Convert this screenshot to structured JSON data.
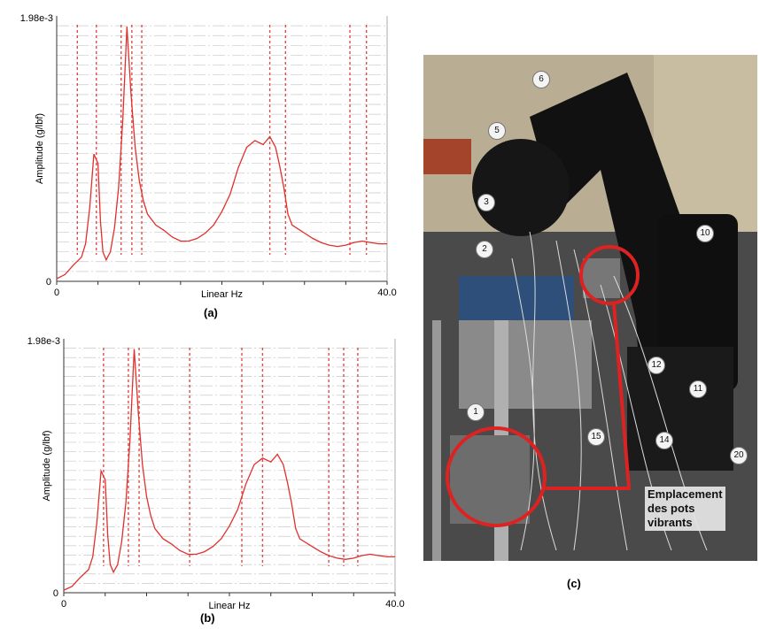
{
  "chart_data": [
    {
      "id": "a",
      "type": "line",
      "caption": "(a)",
      "ylabel": "Amplitude (g/lbf)",
      "xlabel": "Linear Hz",
      "y_max_label": "1.98e-3",
      "y_min_label": "0",
      "x_min_label": "0",
      "x_max_label": "40.0",
      "xlim": [
        0,
        40
      ],
      "ylim": [
        0,
        0.00198
      ],
      "grid": true,
      "series": [
        {
          "color": "#e0302c",
          "x": [
            0,
            1,
            2,
            3,
            3.5,
            4,
            4.5,
            5,
            5.3,
            5.6,
            6,
            6.5,
            7,
            7.5,
            8,
            8.5,
            9,
            9.5,
            10,
            10.5,
            11,
            12,
            13,
            14,
            15,
            16,
            17,
            18,
            19,
            20,
            21,
            22,
            23,
            24,
            25,
            25.8,
            26.5,
            27,
            27.5,
            28,
            28.5,
            29,
            29.5,
            30,
            31,
            32,
            33,
            34,
            35,
            36,
            37,
            38,
            39,
            40
          ],
          "y": [
            2e-05,
            5e-05,
            0.00012,
            0.00018,
            0.00028,
            0.00055,
            0.00095,
            0.00088,
            0.00045,
            0.00022,
            0.00016,
            0.00022,
            0.0004,
            0.0007,
            0.0012,
            0.0019,
            0.0014,
            0.001,
            0.00075,
            0.0006,
            0.0005,
            0.00042,
            0.00038,
            0.00033,
            0.0003,
            0.0003,
            0.00032,
            0.00036,
            0.00042,
            0.00052,
            0.00065,
            0.00085,
            0.001,
            0.00105,
            0.00102,
            0.00108,
            0.001,
            0.00086,
            0.0007,
            0.0005,
            0.00042,
            0.0004,
            0.00038,
            0.00036,
            0.00032,
            0.00029,
            0.00027,
            0.00026,
            0.00027,
            0.00029,
            0.0003,
            0.00029,
            0.00028,
            0.00028
          ]
        }
      ],
      "mode_lines_x": [
        2.5,
        4.8,
        7.8,
        9.1,
        10.3,
        25.8,
        27.7,
        35.5,
        37.5
      ]
    },
    {
      "id": "b",
      "type": "line",
      "caption": "(b)",
      "ylabel": "Amplitude (g/lbf)",
      "xlabel": "Linear Hz",
      "y_max_label": "1.98e-3",
      "y_min_label": "0",
      "x_min_label": "0",
      "x_max_label": "40.0",
      "xlim": [
        0,
        40
      ],
      "ylim": [
        0,
        0.00198
      ],
      "grid": true,
      "series": [
        {
          "color": "#e0302c",
          "x": [
            0,
            1,
            2,
            3,
            3.5,
            4,
            4.5,
            5,
            5.3,
            5.6,
            6,
            6.5,
            7,
            7.5,
            8,
            8.5,
            9,
            9.5,
            10,
            10.5,
            11,
            12,
            13,
            14,
            15,
            16,
            17,
            18,
            19,
            20,
            21,
            22,
            23,
            24,
            25,
            25.8,
            26.5,
            27,
            27.5,
            28,
            28.5,
            29,
            29.5,
            30,
            31,
            32,
            33,
            34,
            35,
            36,
            37,
            38,
            39,
            40
          ],
          "y": [
            2e-05,
            5e-05,
            0.00012,
            0.00018,
            0.00028,
            0.00055,
            0.00095,
            0.00088,
            0.00045,
            0.00022,
            0.00016,
            0.00022,
            0.0004,
            0.0007,
            0.0012,
            0.0019,
            0.0014,
            0.001,
            0.00075,
            0.0006,
            0.0005,
            0.00042,
            0.00038,
            0.00033,
            0.0003,
            0.0003,
            0.00032,
            0.00036,
            0.00042,
            0.00052,
            0.00065,
            0.00085,
            0.001,
            0.00105,
            0.00102,
            0.00108,
            0.001,
            0.00086,
            0.0007,
            0.0005,
            0.00042,
            0.0004,
            0.00038,
            0.00036,
            0.00032,
            0.00029,
            0.00027,
            0.00026,
            0.00027,
            0.00029,
            0.0003,
            0.00029,
            0.00028,
            0.00028
          ]
        }
      ],
      "mode_lines_x": [
        4.8,
        7.8,
        9.1,
        15.2,
        21.5,
        24.0,
        32.0,
        33.8,
        35.5
      ]
    }
  ],
  "photo": {
    "caption": "(c)",
    "callout_line1": "Emplacement",
    "callout_line2": "des pots",
    "callout_line3": "vibrants",
    "markers": [
      "1",
      "2",
      "3",
      "5",
      "6",
      "10",
      "11",
      "12",
      "14",
      "15",
      "20"
    ],
    "highlight_color": "#dd2222"
  }
}
